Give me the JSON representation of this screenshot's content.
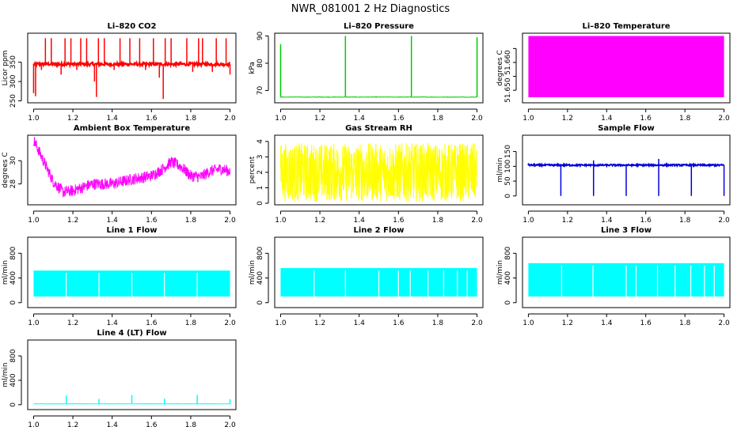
{
  "title": "NWR_081001  2 Hz Diagnostics",
  "chart_data": [
    {
      "id": "co2",
      "type": "line",
      "title": "Li–820 CO2",
      "ylabel": "Licor ppm",
      "color": "#ff0000",
      "xlim": [
        0.97,
        2.03
      ],
      "ylim": [
        245,
        425
      ],
      "xticks": [
        1.0,
        1.2,
        1.4,
        1.6,
        1.8,
        2.0
      ],
      "yticks": [
        250,
        300,
        350
      ],
      "ytick_rotate": true,
      "series": {
        "kind": "baseline_spikes",
        "base": 345,
        "noise": 4,
        "spikes": [
          [
            1.0,
            270
          ],
          [
            1.01,
            262
          ],
          [
            1.04,
            330
          ],
          [
            1.06,
            412
          ],
          [
            1.09,
            412
          ],
          [
            1.11,
            340
          ],
          [
            1.14,
            318
          ],
          [
            1.16,
            412
          ],
          [
            1.19,
            412
          ],
          [
            1.22,
            330
          ],
          [
            1.24,
            412
          ],
          [
            1.27,
            412
          ],
          [
            1.31,
            300
          ],
          [
            1.32,
            260
          ],
          [
            1.33,
            412
          ],
          [
            1.36,
            412
          ],
          [
            1.41,
            330
          ],
          [
            1.44,
            412
          ],
          [
            1.49,
            412
          ],
          [
            1.54,
            412
          ],
          [
            1.57,
            330
          ],
          [
            1.61,
            412
          ],
          [
            1.64,
            310
          ],
          [
            1.66,
            255
          ],
          [
            1.67,
            412
          ],
          [
            1.7,
            412
          ],
          [
            1.72,
            340
          ],
          [
            1.78,
            412
          ],
          [
            1.81,
            325
          ],
          [
            1.84,
            412
          ],
          [
            1.86,
            412
          ],
          [
            1.91,
            325
          ],
          [
            1.93,
            412
          ],
          [
            1.98,
            412
          ],
          [
            2.0,
            318
          ]
        ]
      }
    },
    {
      "id": "pressure",
      "type": "line",
      "title": "Li–820 Pressure",
      "ylabel": "kPa",
      "color": "#00cc00",
      "xlim": [
        0.97,
        2.03
      ],
      "ylim": [
        65.5,
        91
      ],
      "xticks": [
        1.0,
        1.2,
        1.4,
        1.6,
        1.8,
        2.0
      ],
      "yticks": [
        70,
        80,
        90
      ],
      "ytick_rotate": true,
      "series": {
        "kind": "pressure",
        "base": 67.6,
        "noise": 0.1,
        "spikes": [
          [
            1.0,
            87
          ],
          [
            1.33,
            90
          ],
          [
            1.666,
            90
          ],
          [
            2.0,
            89.5
          ]
        ]
      }
    },
    {
      "id": "temperature",
      "type": "area",
      "title": "Li–820 Temperature",
      "ylabel": "degrees C",
      "color": "#ff00ff",
      "xlim": [
        0.97,
        2.03
      ],
      "ylim": [
        51.6455,
        51.6705
      ],
      "fill_range": [
        51.6475,
        51.6695
      ],
      "xticks": [
        1.0,
        1.2,
        1.4,
        1.6,
        1.8,
        2.0
      ],
      "yticks": [
        51.65,
        51.655,
        51.66,
        51.665
      ],
      "ytick_labels": [
        "51.650",
        "",
        "51.660",
        ""
      ],
      "ytick_rotate": true
    },
    {
      "id": "ambient",
      "type": "line",
      "title": "Ambient Box Temperature",
      "ylabel": "degrees C",
      "color": "#ff00ff",
      "xlim": [
        0.97,
        2.03
      ],
      "ylim": [
        26.2,
        32.2
      ],
      "xticks": [
        1.0,
        1.2,
        1.4,
        1.6,
        1.8,
        2.0
      ],
      "yticks": [
        28,
        30
      ],
      "ytick_rotate": true,
      "series": {
        "kind": "curve",
        "noise": 0.5,
        "points": [
          [
            1.0,
            31.8
          ],
          [
            1.05,
            30.0
          ],
          [
            1.1,
            28.2
          ],
          [
            1.15,
            27.3
          ],
          [
            1.2,
            27.4
          ],
          [
            1.3,
            28.0
          ],
          [
            1.4,
            28.0
          ],
          [
            1.5,
            28.4
          ],
          [
            1.6,
            28.7
          ],
          [
            1.65,
            29.2
          ],
          [
            1.7,
            29.9
          ],
          [
            1.75,
            29.5
          ],
          [
            1.8,
            28.7
          ],
          [
            1.85,
            28.6
          ],
          [
            1.9,
            29.1
          ],
          [
            1.95,
            29.3
          ],
          [
            2.0,
            29.1
          ]
        ]
      }
    },
    {
      "id": "rh",
      "type": "line",
      "title": "Gas Stream RH",
      "ylabel": "percent",
      "color": "#ffff00",
      "xlim": [
        0.97,
        2.03
      ],
      "ylim": [
        -0.1,
        4.4
      ],
      "xticks": [
        1.0,
        1.2,
        1.4,
        1.6,
        1.8,
        2.0
      ],
      "yticks": [
        0,
        1,
        2,
        3,
        4
      ],
      "ytick_rotate": true,
      "series": {
        "kind": "band",
        "center": 2.0,
        "half": 1.9
      }
    },
    {
      "id": "sample",
      "type": "line",
      "title": "Sample Flow",
      "ylabel": "ml/min",
      "color": "#0000dd",
      "xlim": [
        0.97,
        2.03
      ],
      "ylim": [
        -30,
        205
      ],
      "xticks": [
        1.0,
        1.2,
        1.4,
        1.6,
        1.8,
        2.0
      ],
      "yticks": [
        0,
        50,
        100,
        150
      ],
      "ytick_rotate": true,
      "series": {
        "kind": "baseline_spikes",
        "base": 104,
        "noise": 2.5,
        "spikes": [
          [
            1.166,
            0
          ],
          [
            1.333,
            0
          ],
          [
            1.333,
            120
          ],
          [
            1.5,
            0
          ],
          [
            1.666,
            0
          ],
          [
            1.666,
            125
          ],
          [
            1.833,
            0
          ],
          [
            2.0,
            0
          ],
          [
            1.0,
            110
          ]
        ]
      }
    },
    {
      "id": "line1",
      "type": "area",
      "title": "Line 1 Flow",
      "ylabel": "ml/min",
      "color": "#00ffff",
      "xlim": [
        0.97,
        2.03
      ],
      "ylim": [
        -80,
        1060
      ],
      "xticks": [
        1.0,
        1.2,
        1.4,
        1.6,
        1.8,
        2.0
      ],
      "yticks": [
        0,
        400,
        800
      ],
      "ytick_rotate": true,
      "series": {
        "kind": "block",
        "low": 100,
        "high": 520,
        "gaps": [
          1.166,
          1.333,
          1.5,
          1.666,
          1.833
        ]
      }
    },
    {
      "id": "line2",
      "type": "area",
      "title": "Line 2 Flow",
      "ylabel": "ml/min",
      "color": "#00ffff",
      "xlim": [
        0.97,
        2.03
      ],
      "ylim": [
        -80,
        1060
      ],
      "xticks": [
        1.0,
        1.2,
        1.4,
        1.6,
        1.8,
        2.0
      ],
      "yticks": [
        0,
        400,
        800
      ],
      "ytick_rotate": true,
      "series": {
        "kind": "block",
        "low": 100,
        "high": 560,
        "gaps": [
          1.17,
          1.33,
          1.5,
          1.6,
          1.66,
          1.75,
          1.83,
          1.9,
          1.95
        ]
      }
    },
    {
      "id": "line3",
      "type": "area",
      "title": "Line 3 Flow",
      "ylabel": "ml/min",
      "color": "#00ffff",
      "xlim": [
        0.97,
        2.03
      ],
      "ylim": [
        -80,
        1060
      ],
      "xticks": [
        1.0,
        1.2,
        1.4,
        1.6,
        1.8,
        2.0
      ],
      "yticks": [
        0,
        400,
        800
      ],
      "ytick_rotate": true,
      "series": {
        "kind": "block",
        "low": 100,
        "high": 640,
        "gaps": [
          1.17,
          1.33,
          1.5,
          1.55,
          1.66,
          1.75,
          1.83,
          1.9,
          1.95
        ]
      }
    },
    {
      "id": "line4",
      "type": "line",
      "title": "Line 4 (LT) Flow",
      "ylabel": "ml/min",
      "color": "#00ffff",
      "xlim": [
        0.97,
        2.03
      ],
      "ylim": [
        -80,
        1060
      ],
      "xticks": [
        1.0,
        1.2,
        1.4,
        1.6,
        1.8,
        2.0
      ],
      "yticks": [
        0,
        400,
        800
      ],
      "ytick_rotate": true,
      "series": {
        "kind": "baseline_spikes",
        "base": 15,
        "noise": 3,
        "spikes": [
          [
            1.166,
            150
          ],
          [
            1.333,
            95
          ],
          [
            1.5,
            160
          ],
          [
            1.666,
            100
          ],
          [
            1.833,
            160
          ],
          [
            2.0,
            90
          ]
        ]
      }
    }
  ]
}
